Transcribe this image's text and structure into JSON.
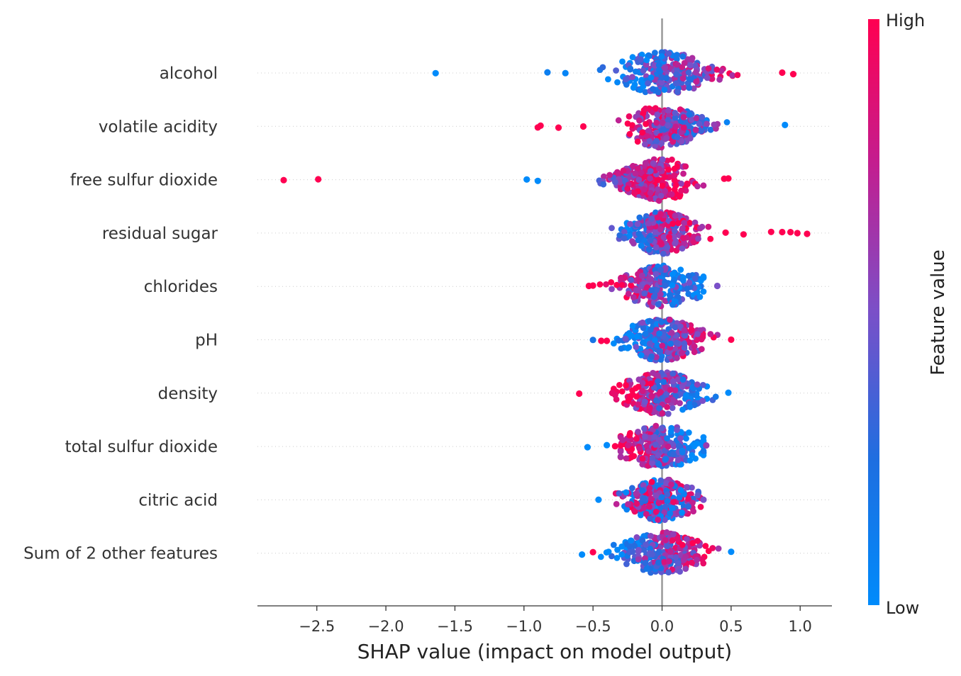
{
  "chart_data": {
    "type": "scatter",
    "subtype": "shap-beeswarm",
    "title": "",
    "xlabel": "SHAP value (impact on model output)",
    "ylabel": "",
    "xlim": [
      -2.93,
      1.23
    ],
    "xticks": [
      -2.5,
      -2.0,
      -1.5,
      -1.0,
      -0.5,
      0.0,
      0.5,
      1.0
    ],
    "xtick_labels": [
      "−2.5",
      "−2.0",
      "−1.5",
      "−1.0",
      "−0.5",
      "0.0",
      "0.5",
      "1.0"
    ],
    "grid": "dotted horizontal row guides",
    "zero_line": 0.0,
    "features": [
      {
        "name": "alcohol",
        "min": -0.5,
        "max": 0.8,
        "spread": 0.42,
        "outliers": [
          {
            "x": -1.64,
            "v": 0.0
          },
          {
            "x": -0.83,
            "v": 0.1
          },
          {
            "x": -0.7,
            "v": 0.05
          },
          {
            "x": 0.87,
            "v": 1.0
          },
          {
            "x": 0.95,
            "v": 1.0
          }
        ],
        "trend": "high-right"
      },
      {
        "name": "volatile acidity",
        "min": -0.45,
        "max": 0.8,
        "spread": 0.32,
        "outliers": [
          {
            "x": -0.9,
            "v": 1.0
          },
          {
            "x": -0.88,
            "v": 1.0
          },
          {
            "x": -0.75,
            "v": 1.0
          },
          {
            "x": -0.57,
            "v": 1.0
          },
          {
            "x": 0.89,
            "v": 0.0
          }
        ],
        "trend": "high-left"
      },
      {
        "name": "free sulfur dioxide",
        "min": -0.8,
        "max": 0.3,
        "spread": 0.33,
        "outliers": [
          {
            "x": -2.74,
            "v": 1.0
          },
          {
            "x": -2.49,
            "v": 1.0
          },
          {
            "x": -0.98,
            "v": 0.0
          },
          {
            "x": -0.9,
            "v": 0.0
          },
          {
            "x": 0.48,
            "v": 1.0
          },
          {
            "x": 0.45,
            "v": 1.0
          }
        ],
        "trend": "low-left"
      },
      {
        "name": "residual sugar",
        "min": -0.45,
        "max": 0.35,
        "spread": 0.3,
        "outliers": [
          {
            "x": 0.46,
            "v": 1.0
          },
          {
            "x": 0.59,
            "v": 1.0
          },
          {
            "x": 0.79,
            "v": 1.0
          },
          {
            "x": 0.87,
            "v": 1.0
          },
          {
            "x": 0.93,
            "v": 1.0
          },
          {
            "x": 0.98,
            "v": 1.0
          },
          {
            "x": 1.05,
            "v": 1.0
          }
        ],
        "trend": "high-right"
      },
      {
        "name": "chlorides",
        "min": -0.45,
        "max": 0.3,
        "spread": 0.34,
        "outliers": [
          {
            "x": -0.53,
            "v": 1.0
          },
          {
            "x": -0.5,
            "v": 1.0
          },
          {
            "x": 0.4,
            "v": 0.5
          }
        ],
        "trend": "high-left"
      },
      {
        "name": "pH",
        "min": -0.35,
        "max": 0.45,
        "spread": 0.34,
        "outliers": [
          {
            "x": -0.5,
            "v": 0.2
          },
          {
            "x": -0.44,
            "v": 1.0
          },
          {
            "x": -0.4,
            "v": 1.0
          },
          {
            "x": 0.5,
            "v": 1.0
          }
        ],
        "trend": "high-right"
      },
      {
        "name": "density",
        "min": -0.35,
        "max": 0.45,
        "spread": 0.34,
        "outliers": [
          {
            "x": -0.6,
            "v": 1.0
          },
          {
            "x": -0.36,
            "v": 0.9
          },
          {
            "x": 0.48,
            "v": 0.0
          }
        ],
        "trend": "high-left"
      },
      {
        "name": "total sulfur dioxide",
        "min": -0.3,
        "max": 0.3,
        "spread": 0.36,
        "outliers": [
          {
            "x": -0.54,
            "v": 0.0
          },
          {
            "x": -0.4,
            "v": 0.0
          },
          {
            "x": -0.34,
            "v": 1.0
          },
          {
            "x": 0.32,
            "v": 0.6
          }
        ],
        "trend": "high-left"
      },
      {
        "name": "citric acid",
        "min": -0.45,
        "max": 0.28,
        "spread": 0.3,
        "outliers": [
          {
            "x": -0.46,
            "v": 0.0
          },
          {
            "x": 0.3,
            "v": 0.5
          }
        ],
        "trend": "mixed"
      },
      {
        "name": "Sum of 2 other features",
        "min": -0.45,
        "max": 0.45,
        "spread": 0.36,
        "outliers": [
          {
            "x": -0.58,
            "v": 0.0
          },
          {
            "x": -0.5,
            "v": 1.0
          },
          {
            "x": 0.5,
            "v": 0.0
          }
        ],
        "trend": "high-right"
      }
    ],
    "colorbar": {
      "label": "Feature value",
      "high_label": "High",
      "low_label": "Low",
      "colors": [
        "#008bfb",
        "#1e6ee0",
        "#7a50c8",
        "#c02590",
        "#ff0051"
      ]
    }
  }
}
